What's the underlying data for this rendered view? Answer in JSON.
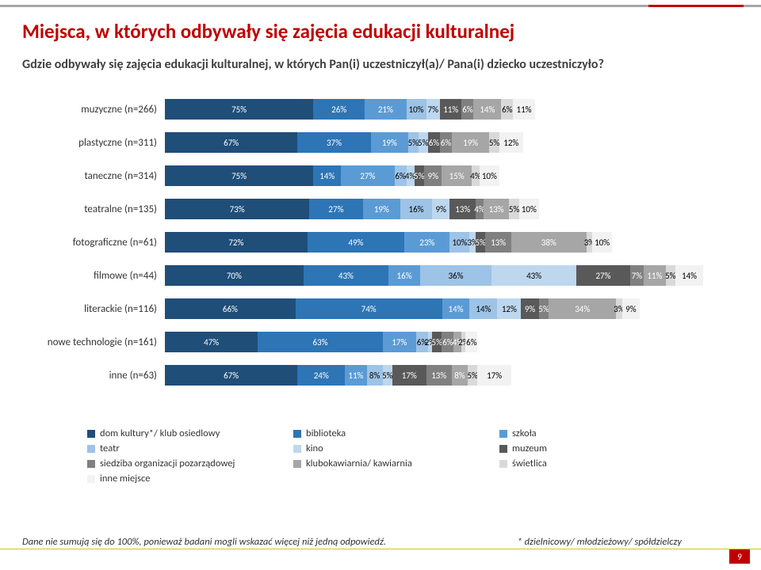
{
  "title": "Miejsca, w których odbywały się zajęcia edukacji kulturalnej",
  "subtitle": "Gdzie odbywały się zajęcia edukacji kulturalnej, w których Pan(i) uczestniczył(a)/ Pana(i) dziecko uczestniczyło?",
  "footnote": "Dane nie sumują się do 100%, ponieważ badani mogli wskazać więcej niż jedną odpowiedź.",
  "footnote2": "* dzielnicowy/ młodzieżowy/ spółdzielczy",
  "pagenum": "9",
  "colors": [
    "#1f4e79",
    "#2e75b6",
    "#5b9bd5",
    "#9dc3e6",
    "#bdd7ee",
    "#595959",
    "#808080",
    "#a6a6a6",
    "#d9d9d9",
    "#f2f2f2"
  ],
  "textColors": [
    "#ffffff",
    "#ffffff",
    "#ffffff",
    "#000000",
    "#000000",
    "#ffffff",
    "#ffffff",
    "#ffffff",
    "#000000",
    "#000000"
  ],
  "legend": [
    "dom kultury*/ klub osiedlowy",
    "biblioteka",
    "szkoła",
    "teatr",
    "kino",
    "muzeum",
    "siedziba organizacji pozarządowej",
    "klubokawiarnia/ kawiarnia",
    "świetlica",
    "inne miejsce"
  ],
  "rows": [
    {
      "label": "muzyczne (n=266)",
      "v": [
        75,
        26,
        21,
        10,
        7,
        11,
        6,
        14,
        6,
        11
      ]
    },
    {
      "label": "plastyczne (n=311)",
      "v": [
        67,
        37,
        19,
        5,
        5,
        6,
        6,
        19,
        5,
        12
      ]
    },
    {
      "label": "taneczne (n=314)",
      "v": [
        75,
        14,
        27,
        6,
        4,
        5,
        9,
        15,
        4,
        10
      ]
    },
    {
      "label": "teatralne (n=135)",
      "v": [
        73,
        27,
        19,
        16,
        9,
        13,
        4,
        13,
        5,
        10
      ]
    },
    {
      "label": "fotograficzne (n=61)",
      "v": [
        72,
        49,
        23,
        10,
        3,
        5,
        13,
        38,
        3,
        10
      ]
    },
    {
      "label": "filmowe (n=44)",
      "v": [
        70,
        43,
        16,
        36,
        43,
        27,
        7,
        11,
        5,
        14
      ]
    },
    {
      "label": "literackie (n=116)",
      "v": [
        66,
        74,
        14,
        14,
        12,
        9,
        5,
        34,
        3,
        9
      ]
    },
    {
      "label": "nowe technologie (n=161)",
      "v": [
        47,
        63,
        17,
        6,
        2,
        5,
        6,
        4,
        2,
        6
      ]
    },
    {
      "label": "inne (n=63)",
      "v": [
        67,
        24,
        11,
        8,
        5,
        17,
        13,
        8,
        5,
        17
      ]
    }
  ],
  "rowScale": 290,
  "barFontSize": 11,
  "labelFontSize": 13
}
